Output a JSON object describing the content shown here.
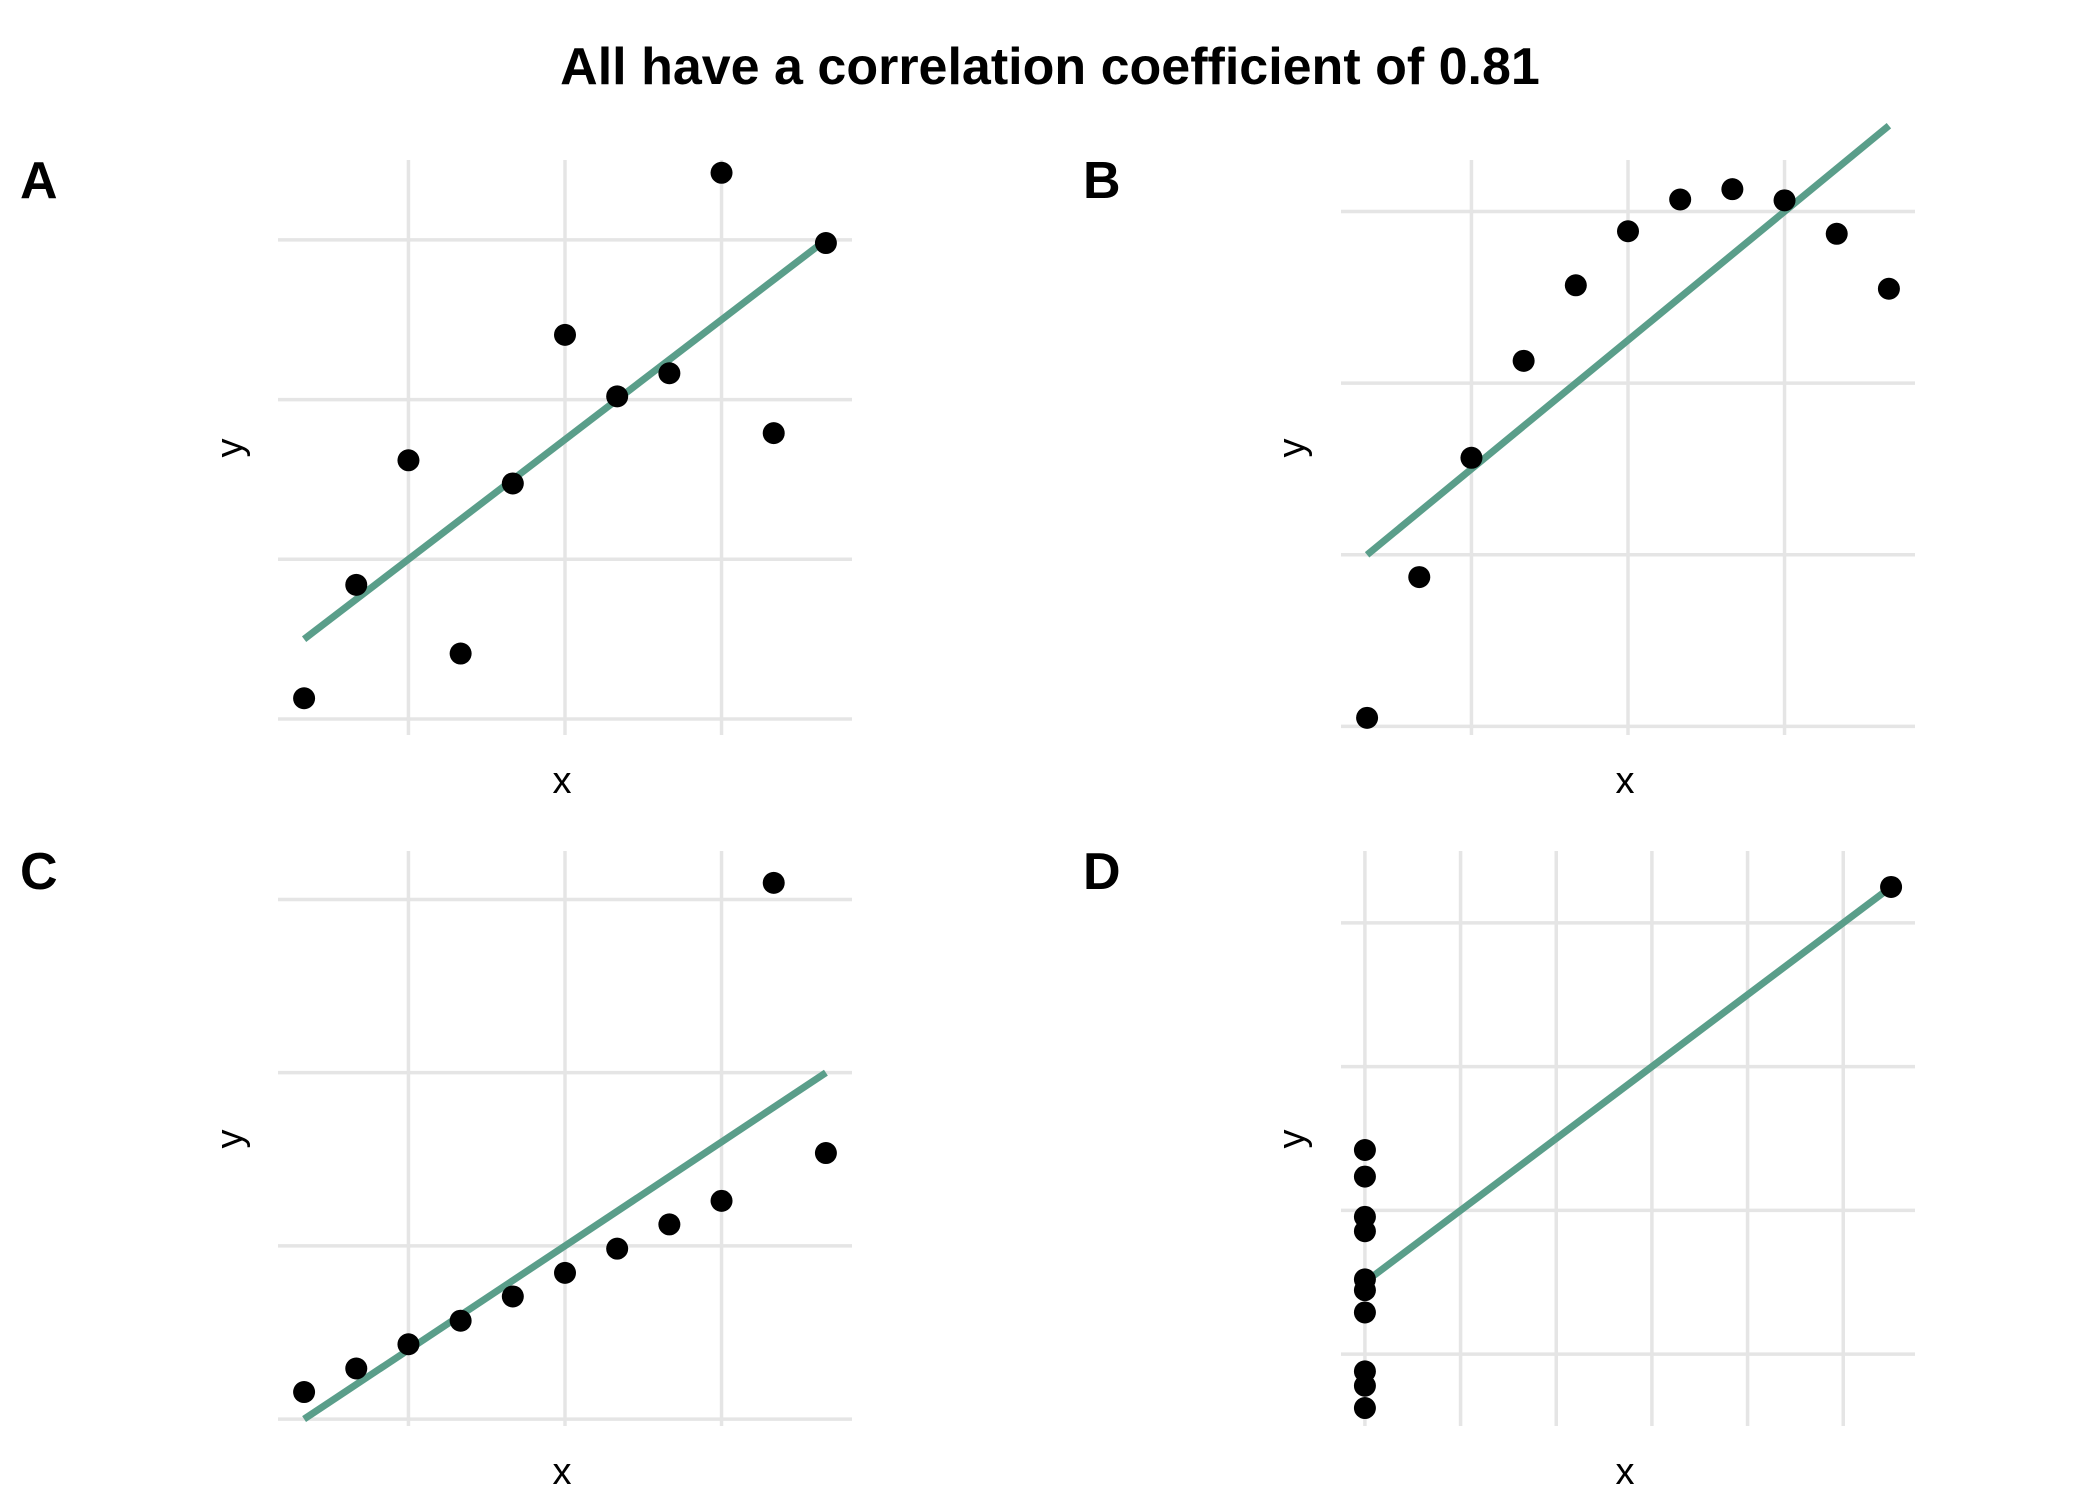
{
  "title": "All have a correlation coefficient of 0.81",
  "style": {
    "line_color": "#5a9e8a",
    "point_color": "#000000",
    "grid_color": "#e5e5e5"
  },
  "chart_data": [
    {
      "panel": "A",
      "type": "scatter",
      "xlabel": "x",
      "ylabel": "y",
      "grid": true,
      "xlim": [
        3.5,
        14.5
      ],
      "ylim": [
        3.8,
        11.0
      ],
      "xgrid": [
        6,
        9,
        12
      ],
      "ygrid": [
        4,
        6,
        8,
        10
      ],
      "x": [
        4,
        5,
        6,
        7,
        8,
        9,
        10,
        11,
        12,
        13,
        14
      ],
      "y": [
        4.26,
        5.68,
        7.24,
        4.82,
        6.95,
        8.81,
        8.04,
        8.33,
        10.84,
        7.58,
        9.96
      ],
      "fit": {
        "intercept": 3.0,
        "slope": 0.5
      }
    },
    {
      "panel": "B",
      "type": "scatter",
      "xlabel": "x",
      "ylabel": "y",
      "grid": true,
      "xlim": [
        3.5,
        14.5
      ],
      "ylim": [
        2.9,
        9.6
      ],
      "xgrid": [
        6,
        9,
        12
      ],
      "ygrid": [
        3,
        5,
        7,
        9
      ],
      "x": [
        4,
        5,
        6,
        7,
        8,
        9,
        10,
        11,
        12,
        13,
        14
      ],
      "y": [
        3.1,
        4.74,
        6.13,
        7.26,
        8.14,
        8.77,
        9.14,
        9.26,
        9.13,
        8.74,
        8.1
      ],
      "fit": {
        "intercept": 3.0,
        "slope": 0.5
      }
    },
    {
      "panel": "C",
      "type": "scatter",
      "xlabel": "x",
      "ylabel": "y",
      "grid": true,
      "xlim": [
        3.5,
        14.5
      ],
      "ylim": [
        4.9,
        13.2
      ],
      "xgrid": [
        6,
        9,
        12
      ],
      "ygrid": [
        5,
        7.5,
        10,
        12.5
      ],
      "x": [
        4,
        5,
        6,
        7,
        8,
        9,
        10,
        11,
        12,
        13,
        14
      ],
      "y": [
        5.39,
        5.73,
        6.08,
        6.42,
        6.77,
        7.11,
        7.46,
        7.81,
        8.15,
        12.74,
        8.84
      ],
      "fit": {
        "intercept": 3.0,
        "slope": 0.5
      }
    },
    {
      "panel": "D",
      "type": "scatter",
      "xlabel": "x",
      "ylabel": "y",
      "grid": true,
      "xlim": [
        7.5,
        19.5
      ],
      "ylim": [
        5.0,
        13.0
      ],
      "xgrid": [
        8,
        10,
        12,
        14,
        16,
        18
      ],
      "ygrid": [
        6,
        8,
        10,
        12
      ],
      "x": [
        8,
        8,
        8,
        8,
        8,
        8,
        8,
        8,
        8,
        8,
        19
      ],
      "y": [
        5.25,
        5.56,
        5.76,
        6.58,
        6.89,
        7.04,
        7.71,
        7.91,
        8.47,
        8.84,
        12.5
      ],
      "fit": {
        "intercept": 3.0,
        "slope": 0.5
      }
    }
  ]
}
